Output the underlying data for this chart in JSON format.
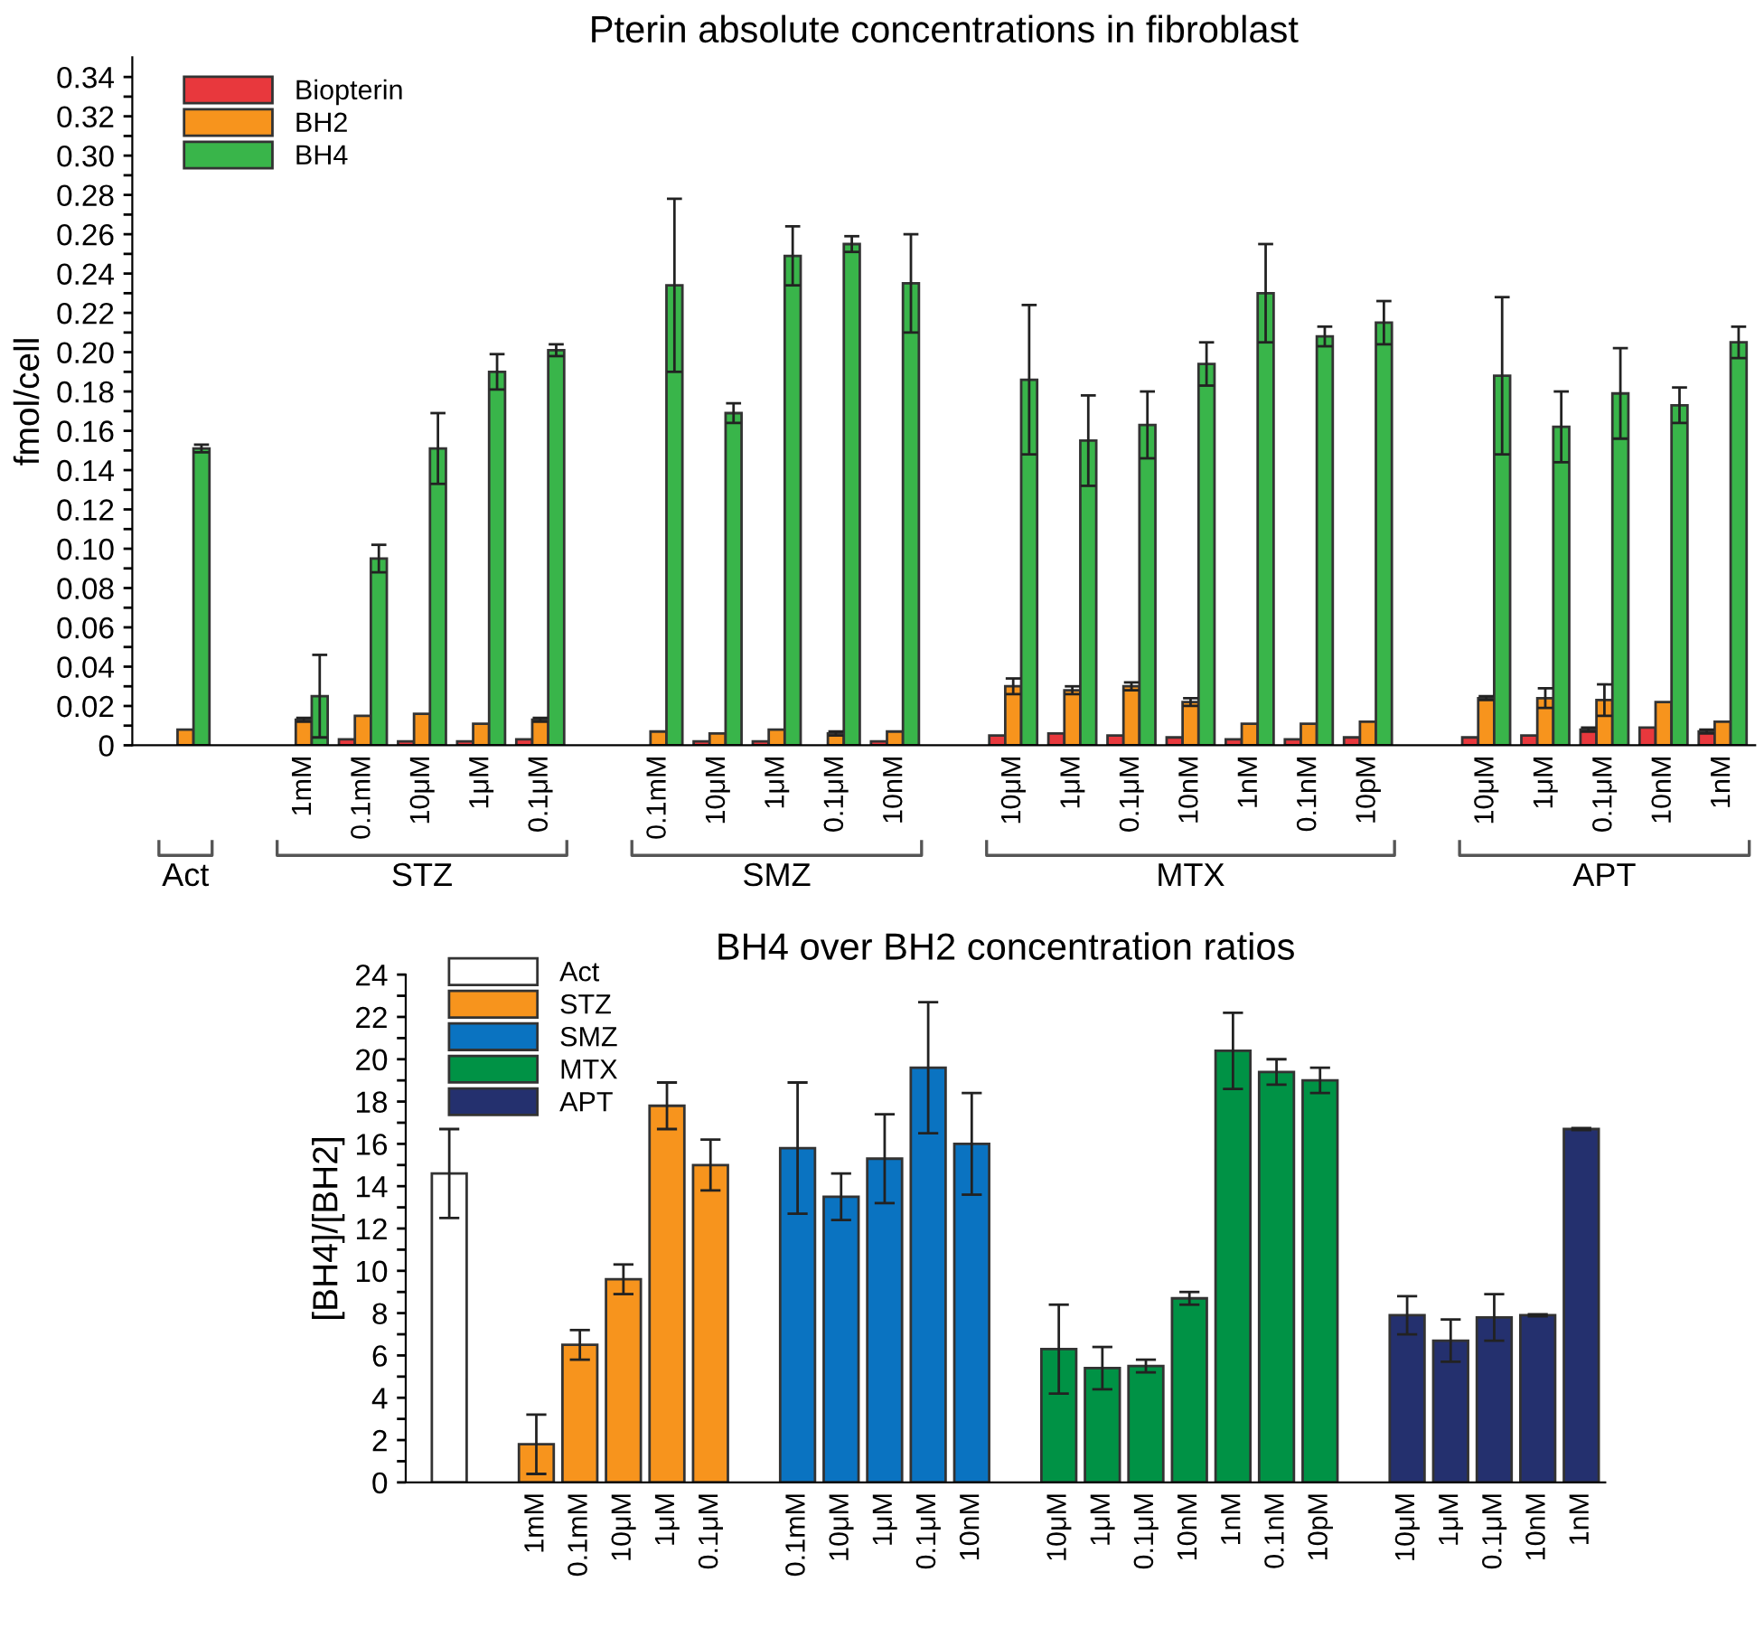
{
  "chart_data": [
    {
      "type": "bar",
      "title": "Pterin absolute concentrations in fibroblast",
      "ylabel": "fmol/cell",
      "categories": [
        null,
        null,
        "1mM",
        "0.1mM",
        "10μM",
        "1μM",
        "0.1μM",
        null,
        "0.1mM",
        "10μM",
        "1μM",
        "0.1μM",
        "10nM",
        null,
        "10μM",
        "1μM",
        "0.1μM",
        "10nM",
        "1nM",
        "0.1nM",
        "10pM",
        null,
        "10μM",
        "1μM",
        "0.1μM",
        "10nM",
        "1nM"
      ],
      "series": [
        {
          "name": "Biopterin",
          "color": "#e8383d",
          "values": [
            null,
            null,
            null,
            0.003,
            0.002,
            0.002,
            0.003,
            null,
            null,
            0.002,
            0.002,
            null,
            0.002,
            null,
            0.005,
            0.006,
            0.005,
            0.004,
            0.003,
            0.003,
            0.004,
            null,
            0.004,
            0.005,
            0.008,
            0.009,
            0.007
          ],
          "errors": [
            null,
            null,
            null,
            null,
            null,
            null,
            null,
            null,
            null,
            null,
            null,
            null,
            null,
            null,
            null,
            null,
            null,
            null,
            null,
            null,
            null,
            null,
            null,
            null,
            0.001,
            null,
            0.001
          ]
        },
        {
          "name": "BH2",
          "color": "#f7941d",
          "values": [
            0.008,
            null,
            0.013,
            0.015,
            0.016,
            0.011,
            0.013,
            null,
            0.007,
            0.006,
            0.008,
            0.006,
            0.007,
            null,
            0.03,
            0.028,
            0.03,
            0.022,
            0.011,
            0.011,
            0.012,
            null,
            0.024,
            0.024,
            0.023,
            0.022,
            0.012
          ],
          "errors": [
            null,
            null,
            0.001,
            null,
            null,
            null,
            0.001,
            null,
            null,
            null,
            null,
            0.001,
            null,
            null,
            0.004,
            0.002,
            0.002,
            0.002,
            null,
            null,
            null,
            null,
            0.001,
            0.005,
            0.008,
            null,
            null
          ]
        },
        {
          "name": "BH4",
          "color": "#39b54a",
          "values": [
            0.151,
            null,
            0.025,
            0.095,
            0.151,
            0.19,
            0.201,
            null,
            0.234,
            0.169,
            0.249,
            0.255,
            0.235,
            null,
            0.186,
            0.155,
            0.163,
            0.194,
            0.23,
            0.208,
            0.215,
            null,
            0.188,
            0.162,
            0.179,
            0.173,
            0.205
          ],
          "errors": [
            0.002,
            null,
            0.021,
            0.007,
            0.018,
            0.009,
            0.003,
            null,
            0.044,
            0.005,
            0.015,
            0.004,
            0.025,
            null,
            0.038,
            0.023,
            0.017,
            0.011,
            0.025,
            0.005,
            0.011,
            null,
            0.04,
            0.018,
            0.023,
            0.009,
            0.008
          ]
        }
      ],
      "annotations": [
        "Act",
        "STZ",
        "SMZ",
        "MTX",
        "APT"
      ],
      "ylim": [
        0,
        0.35
      ],
      "yticks": [
        0,
        {
          "value": 0.01,
          "label": null
        },
        {
          "value": 0.02,
          "label": "0.02"
        },
        {
          "value": 0.03,
          "label": null
        },
        {
          "value": 0.04,
          "label": "0.04"
        },
        {
          "value": 0.05,
          "label": null
        },
        {
          "value": 0.06,
          "label": "0.06"
        },
        {
          "value": 0.07,
          "label": null
        },
        {
          "value": 0.08,
          "label": "0.08"
        },
        {
          "value": 0.09,
          "label": null
        },
        {
          "value": 0.1,
          "label": "0.10"
        },
        {
          "value": 0.11,
          "label": null
        },
        {
          "value": 0.12,
          "label": "0.12"
        },
        {
          "value": 0.13,
          "label": null
        },
        {
          "value": 0.14,
          "label": "0.14"
        },
        {
          "value": 0.15,
          "label": null
        },
        {
          "value": 0.16,
          "label": "0.16"
        },
        {
          "value": 0.17,
          "label": null
        },
        {
          "value": 0.18,
          "label": "0.18"
        },
        {
          "value": 0.19,
          "label": null
        },
        {
          "value": 0.2,
          "label": "0.20"
        },
        {
          "value": 0.21,
          "label": null
        },
        {
          "value": 0.22,
          "label": "0.22"
        },
        {
          "value": 0.23,
          "label": null
        },
        {
          "value": 0.24,
          "label": "0.24"
        },
        {
          "value": 0.25,
          "label": null
        },
        {
          "value": 0.26,
          "label": "0.26"
        },
        {
          "value": 0.27,
          "label": null
        },
        {
          "value": 0.28,
          "label": "0.28"
        },
        {
          "value": 0.29,
          "label": null
        },
        {
          "value": 0.3,
          "label": "0.30"
        },
        {
          "value": 0.31,
          "label": null
        },
        {
          "value": 0.32,
          "label": "0.32"
        },
        {
          "value": 0.33,
          "label": null
        },
        {
          "value": 0.34,
          "label": "0.34"
        }
      ],
      "legend": "top left",
      "grid": false
    },
    {
      "type": "bar",
      "title": "BH4 over BH2 concentration ratios",
      "ylabel": "[BH4]/[BH2]",
      "categories": [
        null,
        null,
        "1mM",
        "0.1mM",
        "10μM",
        "1μM",
        "0.1μM",
        null,
        "0.1mM",
        "10μM",
        "1μM",
        "0.1μM",
        "10nM",
        null,
        "10μM",
        "1μM",
        "0.1μM",
        "10nM",
        "1nM",
        "0.1nM",
        "10pM",
        null,
        "10μM",
        "1μM",
        "0.1μM",
        "10nM",
        "1nM"
      ],
      "series": [
        {
          "name": "Act",
          "color": "#ffffff",
          "values": [
            14.6,
            null,
            null,
            null,
            null,
            null,
            null,
            null,
            null,
            null,
            null,
            null,
            null,
            null,
            null,
            null,
            null,
            null,
            null,
            null,
            null,
            null,
            null,
            null,
            null,
            null,
            null
          ],
          "errors": [
            2.1,
            null,
            null,
            null,
            null,
            null,
            null,
            null,
            null,
            null,
            null,
            null,
            null,
            null,
            null,
            null,
            null,
            null,
            null,
            null,
            null,
            null,
            null,
            null,
            null,
            null,
            null
          ]
        },
        {
          "name": "STZ",
          "color": "#f7941d",
          "values": [
            null,
            null,
            1.8,
            6.5,
            9.6,
            17.8,
            15.0,
            null,
            null,
            null,
            null,
            null,
            null,
            null,
            null,
            null,
            null,
            null,
            null,
            null,
            null,
            null,
            null,
            null,
            null,
            null,
            null
          ],
          "errors": [
            null,
            null,
            1.4,
            0.7,
            0.7,
            1.1,
            1.2,
            null,
            null,
            null,
            null,
            null,
            null,
            null,
            null,
            null,
            null,
            null,
            null,
            null,
            null,
            null,
            null,
            null,
            null,
            null,
            null
          ]
        },
        {
          "name": "SMZ",
          "color": "#0a73c1",
          "values": [
            null,
            null,
            null,
            null,
            null,
            null,
            null,
            null,
            15.8,
            13.5,
            15.3,
            19.6,
            16.0,
            null,
            null,
            null,
            null,
            null,
            null,
            null,
            null,
            null,
            null,
            null,
            null,
            null,
            null
          ],
          "errors": [
            null,
            null,
            null,
            null,
            null,
            null,
            null,
            null,
            3.1,
            1.1,
            2.1,
            3.1,
            2.4,
            null,
            null,
            null,
            null,
            null,
            null,
            null,
            null,
            null,
            null,
            null,
            null,
            null,
            null
          ]
        },
        {
          "name": "MTX",
          "color": "#009245",
          "values": [
            null,
            null,
            null,
            null,
            null,
            null,
            null,
            null,
            null,
            null,
            null,
            null,
            null,
            null,
            6.3,
            5.4,
            5.5,
            8.7,
            20.4,
            19.4,
            19.0,
            null,
            null,
            null,
            null,
            null,
            null
          ],
          "errors": [
            null,
            null,
            null,
            null,
            null,
            null,
            null,
            null,
            null,
            null,
            null,
            null,
            null,
            null,
            2.1,
            1.0,
            0.3,
            0.3,
            1.8,
            0.6,
            0.6,
            null,
            null,
            null,
            null,
            null,
            null
          ]
        },
        {
          "name": "APT",
          "color": "#24306e",
          "values": [
            null,
            null,
            null,
            null,
            null,
            null,
            null,
            null,
            null,
            null,
            null,
            null,
            null,
            null,
            null,
            null,
            null,
            null,
            null,
            null,
            null,
            null,
            7.9,
            6.7,
            7.8,
            7.9,
            16.7
          ],
          "errors": [
            null,
            null,
            null,
            null,
            null,
            null,
            null,
            null,
            null,
            null,
            null,
            null,
            null,
            null,
            null,
            null,
            null,
            null,
            null,
            null,
            null,
            null,
            0.9,
            1.0,
            1.1,
            0.05,
            0.05
          ]
        }
      ],
      "ylim": [
        0,
        24
      ],
      "yticks": [
        0,
        {
          "value": 1,
          "label": null
        },
        2,
        {
          "value": 3,
          "label": null
        },
        4,
        {
          "value": 5,
          "label": null
        },
        6,
        {
          "value": 7,
          "label": null
        },
        8,
        {
          "value": 9,
          "label": null
        },
        10,
        {
          "value": 11,
          "label": null
        },
        12,
        {
          "value": 13,
          "label": null
        },
        14,
        {
          "value": 15,
          "label": null
        },
        16,
        {
          "value": 17,
          "label": null
        },
        18,
        {
          "value": 19,
          "label": null
        },
        20,
        {
          "value": 21,
          "label": null
        },
        22,
        {
          "value": 23,
          "label": null
        },
        24
      ],
      "legend": "top left",
      "grid": false
    }
  ]
}
